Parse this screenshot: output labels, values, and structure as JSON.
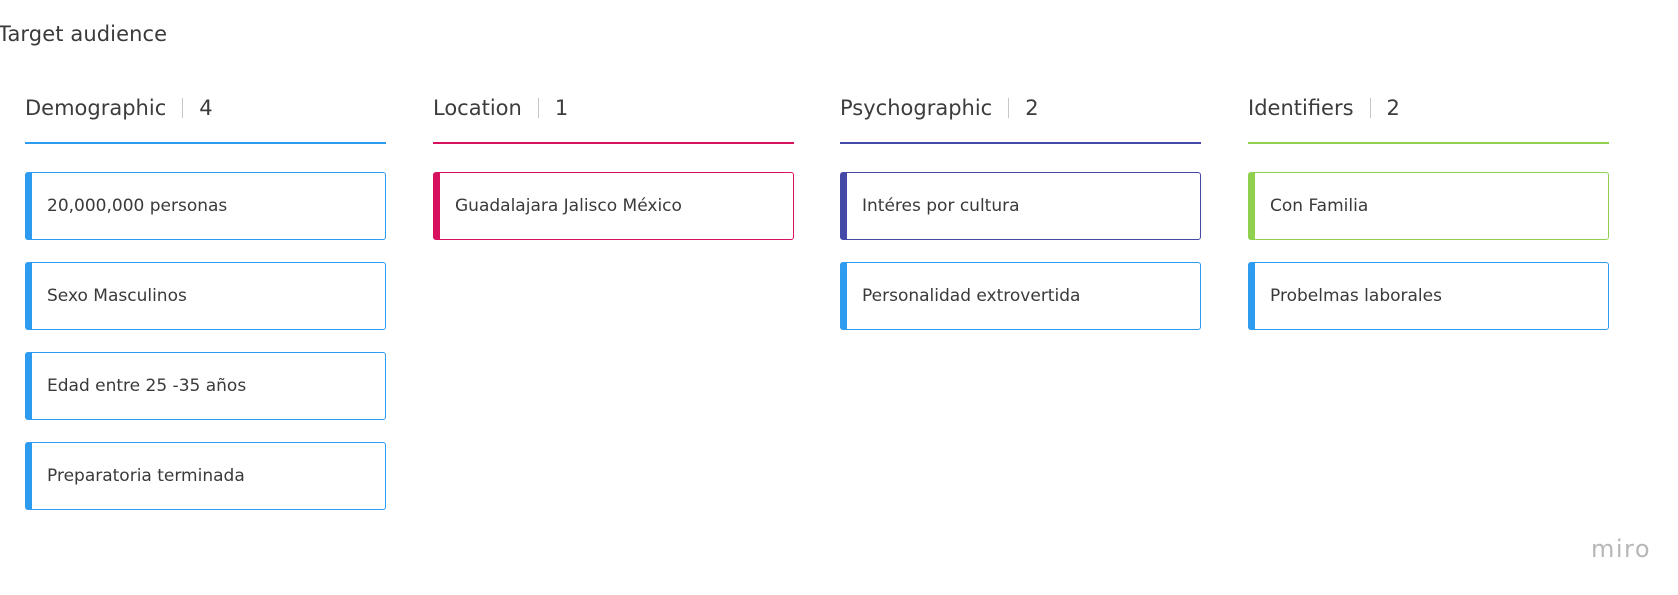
{
  "board": {
    "title": "Target audience"
  },
  "columns": [
    {
      "title": "Demographic",
      "count": "4",
      "color": "#2d9bf0",
      "cards": [
        {
          "text": "20,000,000 personas",
          "color": "#2d9bf0"
        },
        {
          "text": "Sexo Masculinos",
          "color": "#2d9bf0"
        },
        {
          "text": "Edad entre 25 -35 años",
          "color": "#2d9bf0"
        },
        {
          "text": "Preparatoria terminada",
          "color": "#2d9bf0"
        }
      ]
    },
    {
      "title": "Location",
      "count": "1",
      "color": "#d8115e",
      "cards": [
        {
          "text": "Guadalajara Jalisco México",
          "color": "#d8115e"
        }
      ]
    },
    {
      "title": "Psychographic",
      "count": "2",
      "color": "#4449a8",
      "cards": [
        {
          "text": "Intéres por cultura",
          "color": "#4449a8"
        },
        {
          "text": "Personalidad extrovertida",
          "color": "#2d9bf0"
        }
      ]
    },
    {
      "title": "Identifiers",
      "count": "2",
      "color": "#8fd14f",
      "cards": [
        {
          "text": "Con Familia",
          "color": "#8fd14f"
        },
        {
          "text": "Probelmas laborales",
          "color": "#2d9bf0"
        }
      ]
    }
  ],
  "branding": {
    "logo_text": "miro"
  }
}
